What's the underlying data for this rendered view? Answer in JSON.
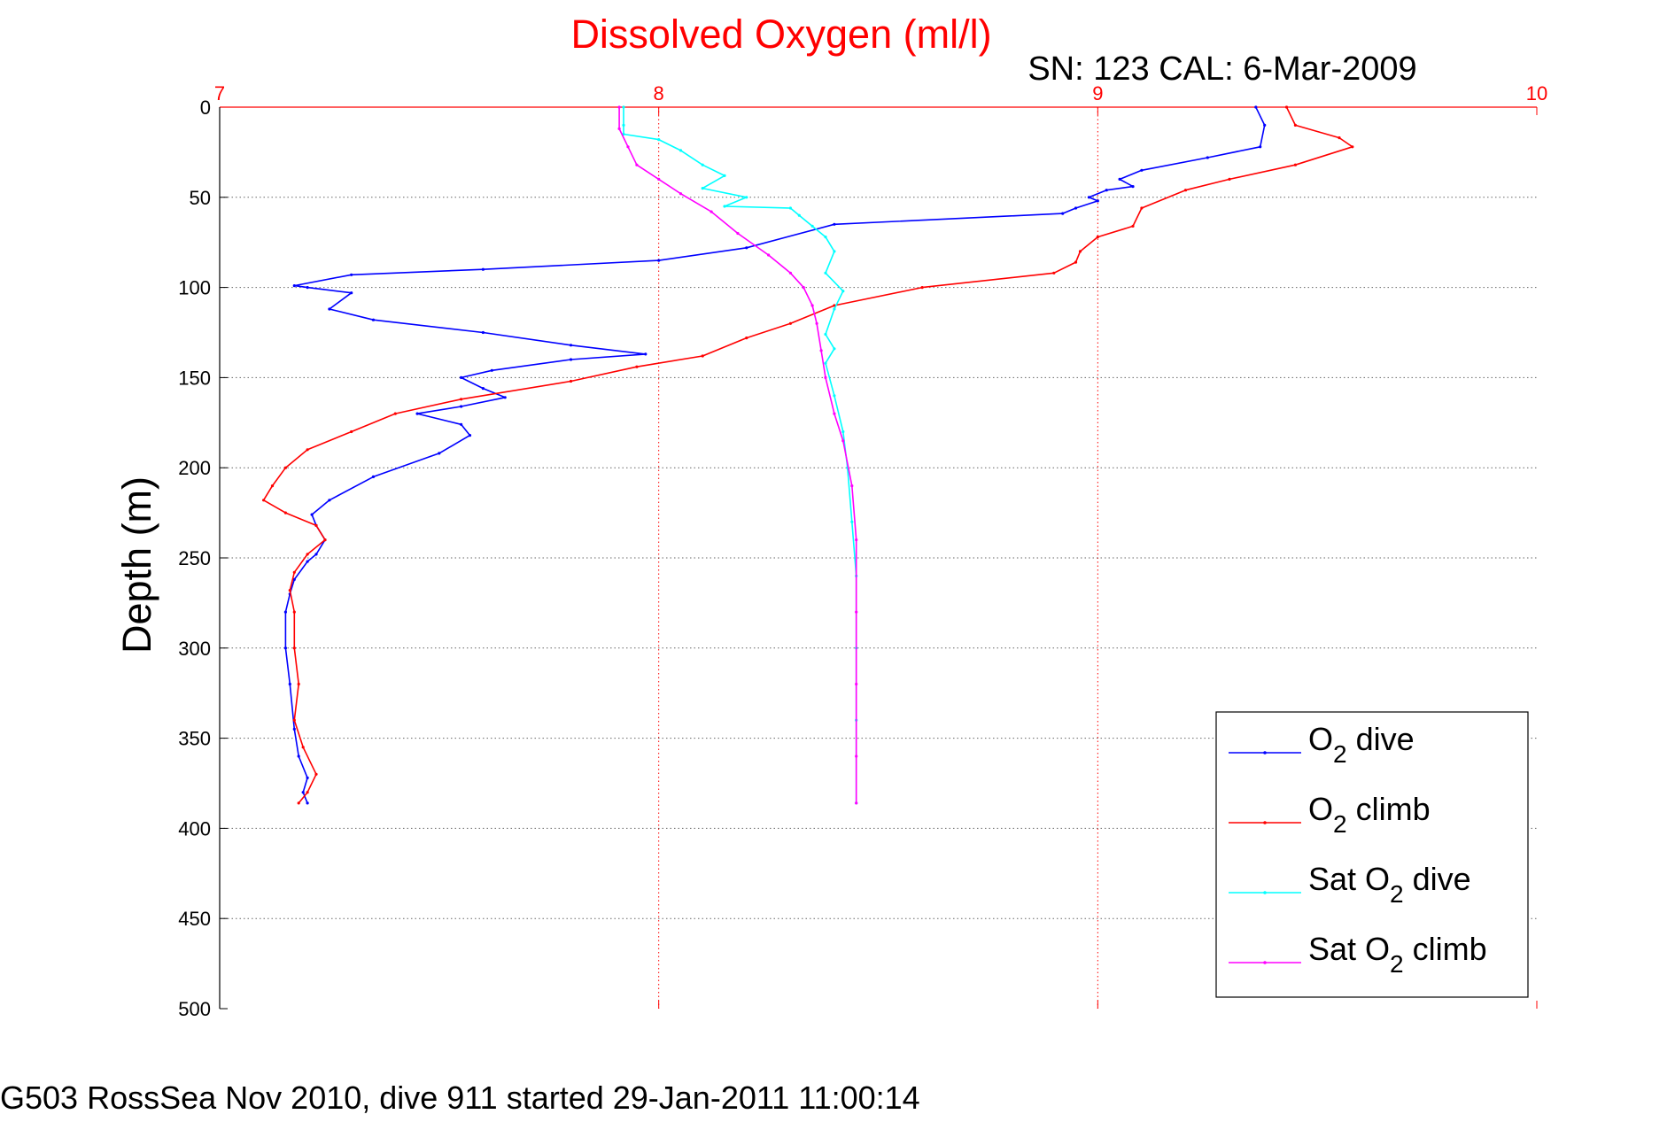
{
  "chart_data": {
    "type": "line",
    "title": "Dissolved Oxygen (ml/l)",
    "subtitle": "SN: 123  CAL: 6-Mar-2009",
    "footer": "G503 RossSea Nov 2010, dive 911 started 29-Jan-2011 11:00:14",
    "ylabel": "Depth (m)",
    "xlim": [
      7,
      10
    ],
    "ylim": [
      0,
      500
    ],
    "y_reversed": true,
    "x_axis_position": "top",
    "x_ticks": [
      "7",
      "8",
      "9",
      "10"
    ],
    "y_ticks": [
      "0",
      "50",
      "100",
      "150",
      "200",
      "250",
      "300",
      "350",
      "400",
      "450",
      "500"
    ],
    "grid": true,
    "legend_position": "bottom-right",
    "colors": {
      "title": "#ff0000",
      "x_axis": "#ff0000",
      "y_axis": "#000000",
      "grid": "#808080"
    },
    "series": [
      {
        "name": "O2 dive",
        "legend_main": "O",
        "legend_sub": "2",
        "legend_rest": " dive",
        "color": "#0000ff",
        "points": [
          [
            9.36,
            0
          ],
          [
            9.38,
            10
          ],
          [
            9.37,
            22
          ],
          [
            9.25,
            28
          ],
          [
            9.1,
            35
          ],
          [
            9.05,
            40
          ],
          [
            9.08,
            44
          ],
          [
            9.02,
            46
          ],
          [
            8.98,
            50
          ],
          [
            9.0,
            52
          ],
          [
            8.95,
            56
          ],
          [
            8.92,
            59
          ],
          [
            8.4,
            65
          ],
          [
            8.2,
            78
          ],
          [
            8.0,
            85
          ],
          [
            7.6,
            90
          ],
          [
            7.3,
            93
          ],
          [
            7.17,
            99
          ],
          [
            7.2,
            100
          ],
          [
            7.3,
            103
          ],
          [
            7.25,
            112
          ],
          [
            7.35,
            118
          ],
          [
            7.6,
            125
          ],
          [
            7.8,
            132
          ],
          [
            7.97,
            137
          ],
          [
            7.8,
            140
          ],
          [
            7.62,
            146
          ],
          [
            7.55,
            150
          ],
          [
            7.6,
            156
          ],
          [
            7.65,
            161
          ],
          [
            7.55,
            166
          ],
          [
            7.45,
            170
          ],
          [
            7.55,
            176
          ],
          [
            7.57,
            182
          ],
          [
            7.5,
            192
          ],
          [
            7.35,
            205
          ],
          [
            7.25,
            218
          ],
          [
            7.21,
            226
          ],
          [
            7.22,
            232
          ],
          [
            7.24,
            240
          ],
          [
            7.22,
            248
          ],
          [
            7.2,
            252
          ],
          [
            7.17,
            262
          ],
          [
            7.16,
            270
          ],
          [
            7.15,
            280
          ],
          [
            7.15,
            300
          ],
          [
            7.16,
            320
          ],
          [
            7.17,
            345
          ],
          [
            7.18,
            360
          ],
          [
            7.2,
            372
          ],
          [
            7.19,
            380
          ],
          [
            7.2,
            386
          ]
        ]
      },
      {
        "name": "O2 climb",
        "legend_main": "O",
        "legend_sub": "2",
        "legend_rest": " climb",
        "color": "#ff0000",
        "points": [
          [
            9.43,
            0
          ],
          [
            9.45,
            10
          ],
          [
            9.55,
            17
          ],
          [
            9.58,
            22
          ],
          [
            9.45,
            32
          ],
          [
            9.3,
            40
          ],
          [
            9.2,
            46
          ],
          [
            9.1,
            56
          ],
          [
            9.08,
            66
          ],
          [
            9.0,
            72
          ],
          [
            8.96,
            80
          ],
          [
            8.95,
            86
          ],
          [
            8.9,
            92
          ],
          [
            8.6,
            100
          ],
          [
            8.4,
            110
          ],
          [
            8.3,
            120
          ],
          [
            8.2,
            128
          ],
          [
            8.1,
            138
          ],
          [
            7.95,
            144
          ],
          [
            7.8,
            152
          ],
          [
            7.55,
            162
          ],
          [
            7.4,
            170
          ],
          [
            7.3,
            180
          ],
          [
            7.2,
            190
          ],
          [
            7.15,
            200
          ],
          [
            7.12,
            210
          ],
          [
            7.1,
            218
          ],
          [
            7.15,
            225
          ],
          [
            7.22,
            232
          ],
          [
            7.24,
            240
          ],
          [
            7.2,
            248
          ],
          [
            7.17,
            258
          ],
          [
            7.16,
            268
          ],
          [
            7.17,
            280
          ],
          [
            7.17,
            300
          ],
          [
            7.18,
            320
          ],
          [
            7.17,
            340
          ],
          [
            7.19,
            355
          ],
          [
            7.22,
            370
          ],
          [
            7.2,
            380
          ],
          [
            7.18,
            386
          ]
        ]
      },
      {
        "name": "Sat O2 dive",
        "legend_main": "Sat O",
        "legend_sub": "2",
        "legend_rest": " dive",
        "color": "#00ffff",
        "points": [
          [
            7.92,
            0
          ],
          [
            7.92,
            10
          ],
          [
            7.92,
            15
          ],
          [
            8.0,
            18
          ],
          [
            8.05,
            24
          ],
          [
            8.1,
            32
          ],
          [
            8.15,
            38
          ],
          [
            8.1,
            45
          ],
          [
            8.2,
            50
          ],
          [
            8.15,
            55
          ],
          [
            8.3,
            56
          ],
          [
            8.32,
            60
          ],
          [
            8.35,
            66
          ],
          [
            8.38,
            72
          ],
          [
            8.4,
            80
          ],
          [
            8.38,
            92
          ],
          [
            8.42,
            102
          ],
          [
            8.4,
            112
          ],
          [
            8.38,
            126
          ],
          [
            8.4,
            134
          ],
          [
            8.38,
            142
          ],
          [
            8.4,
            160
          ],
          [
            8.42,
            180
          ],
          [
            8.43,
            200
          ],
          [
            8.44,
            230
          ],
          [
            8.45,
            260
          ],
          [
            8.45,
            300
          ],
          [
            8.45,
            340
          ],
          [
            8.45,
            386
          ]
        ]
      },
      {
        "name": "Sat O2 climb",
        "legend_main": "Sat O",
        "legend_sub": "2",
        "legend_rest": " climb",
        "color": "#ff00ff",
        "points": [
          [
            7.91,
            0
          ],
          [
            7.91,
            12
          ],
          [
            7.93,
            22
          ],
          [
            7.95,
            32
          ],
          [
            8.0,
            40
          ],
          [
            8.05,
            48
          ],
          [
            8.12,
            58
          ],
          [
            8.18,
            70
          ],
          [
            8.25,
            82
          ],
          [
            8.3,
            92
          ],
          [
            8.33,
            100
          ],
          [
            8.35,
            110
          ],
          [
            8.36,
            120
          ],
          [
            8.37,
            135
          ],
          [
            8.38,
            150
          ],
          [
            8.4,
            170
          ],
          [
            8.42,
            185
          ],
          [
            8.44,
            210
          ],
          [
            8.45,
            240
          ],
          [
            8.45,
            280
          ],
          [
            8.45,
            320
          ],
          [
            8.45,
            360
          ],
          [
            8.45,
            386
          ]
        ]
      }
    ]
  }
}
